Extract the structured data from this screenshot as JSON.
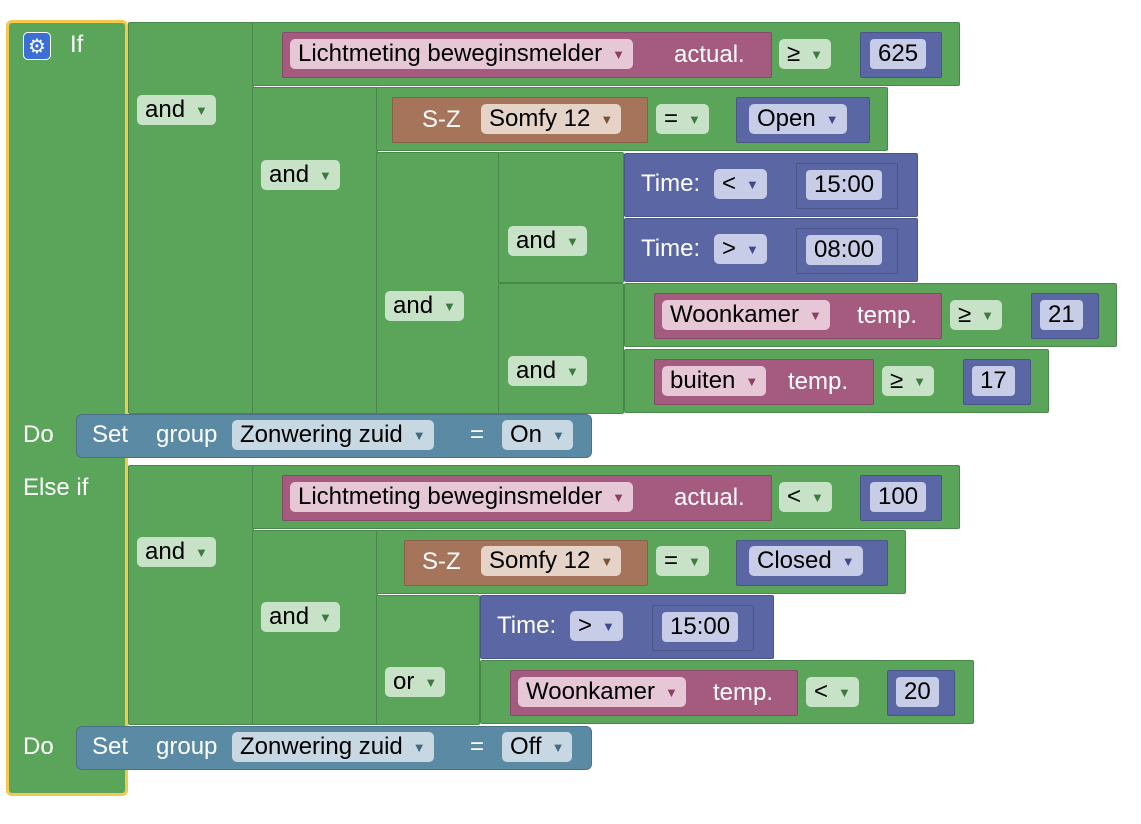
{
  "rule": {
    "if_label": "If",
    "do_label": "Do",
    "elseif_label": "Else if",
    "gear_icon": "gear-icon"
  },
  "b1": {
    "and1": "and",
    "light": {
      "device": "Lichtmeting beweginsmelder",
      "prop": "actual.",
      "op": "≥",
      "value": "625"
    },
    "and2": "and",
    "switch": {
      "type": "S-Z",
      "device": "Somfy 12",
      "op": "=",
      "state": "Open"
    },
    "and3": "and",
    "and4": "and",
    "time1": {
      "label": "Time:",
      "op": "<",
      "value": "15:00"
    },
    "time2": {
      "label": "Time:",
      "op": ">",
      "value": "08:00"
    },
    "and5": "and",
    "temp1": {
      "device": "Woonkamer",
      "prop": "temp.",
      "op": "≥",
      "value": "21"
    },
    "temp2": {
      "device": "buiten",
      "prop": "temp.",
      "op": "≥",
      "value": "17"
    },
    "action": {
      "set": "Set",
      "kind": "group",
      "target": "Zonwering zuid",
      "eq": "=",
      "state": "On"
    }
  },
  "b2": {
    "and1": "and",
    "light": {
      "device": "Lichtmeting beweginsmelder",
      "prop": "actual.",
      "op": "<",
      "value": "100"
    },
    "and2": "and",
    "switch": {
      "type": "S-Z",
      "device": "Somfy 12",
      "op": "=",
      "state": "Closed"
    },
    "or1": "or",
    "time1": {
      "label": "Time:",
      "op": ">",
      "value": "15:00"
    },
    "temp1": {
      "device": "Woonkamer",
      "prop": "temp.",
      "op": "<",
      "value": "20"
    },
    "action": {
      "set": "Set",
      "kind": "group",
      "target": "Zonwering zuid",
      "eq": "=",
      "state": "Off"
    }
  }
}
